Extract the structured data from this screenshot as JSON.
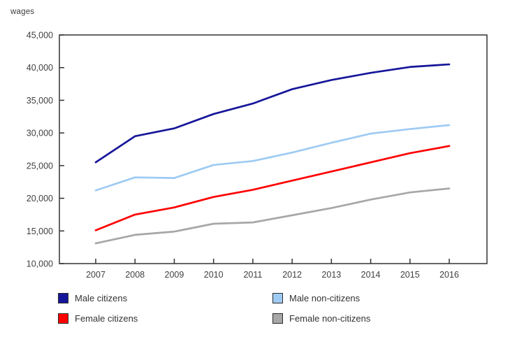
{
  "page": {
    "background": "#ffffff"
  },
  "colors": {
    "axis": "#333333",
    "tick_text": "#404040",
    "legend_text": "#333333",
    "swatch_border": "#2b2b2b",
    "male_citizens": "#16169a",
    "male_non_citizens": "#9ecbf3",
    "female_citizens": "#fe0000",
    "female_non_citizens": "#a7a7a7"
  },
  "chart_data": {
    "type": "line",
    "title": "",
    "xlabel": "",
    "ylabel": "wages",
    "x": [
      2007,
      2008,
      2009,
      2010,
      2011,
      2012,
      2013,
      2014,
      2015,
      2016
    ],
    "x_tick_labels": [
      "2007",
      "2008",
      "2009",
      "2010",
      "2011",
      "2012",
      "2013",
      "2014",
      "2015",
      "2016"
    ],
    "ylim": [
      10000,
      45000
    ],
    "y_ticks": [
      45000,
      40000,
      35000,
      30000,
      25000,
      20000,
      15000,
      10000
    ],
    "y_tick_labels": [
      "45,000",
      "40,000",
      "35,000",
      "30,000",
      "25,000",
      "20,000",
      "15,000",
      "10,000"
    ],
    "grid": false,
    "legend_position": "bottom",
    "series": [
      {
        "name": "Male citizens",
        "color": "#16169a",
        "values": [
          25500,
          29500,
          30700,
          32900,
          34500,
          36700,
          38100,
          39200,
          40100,
          40500
        ]
      },
      {
        "name": "Male non-citizens",
        "color": "#9ecbf3",
        "values": [
          21200,
          23200,
          23100,
          25100,
          25700,
          27000,
          28500,
          29900,
          30600,
          31200
        ]
      },
      {
        "name": "Female citizens",
        "color": "#fe0000",
        "values": [
          15100,
          17500,
          18600,
          20200,
          21300,
          22700,
          24100,
          25500,
          26900,
          28000
        ]
      },
      {
        "name": "Female non-citizens",
        "color": "#a7a7a7",
        "values": [
          13100,
          14400,
          14900,
          16100,
          16300,
          17400,
          18500,
          19800,
          20900,
          21500
        ]
      }
    ]
  }
}
